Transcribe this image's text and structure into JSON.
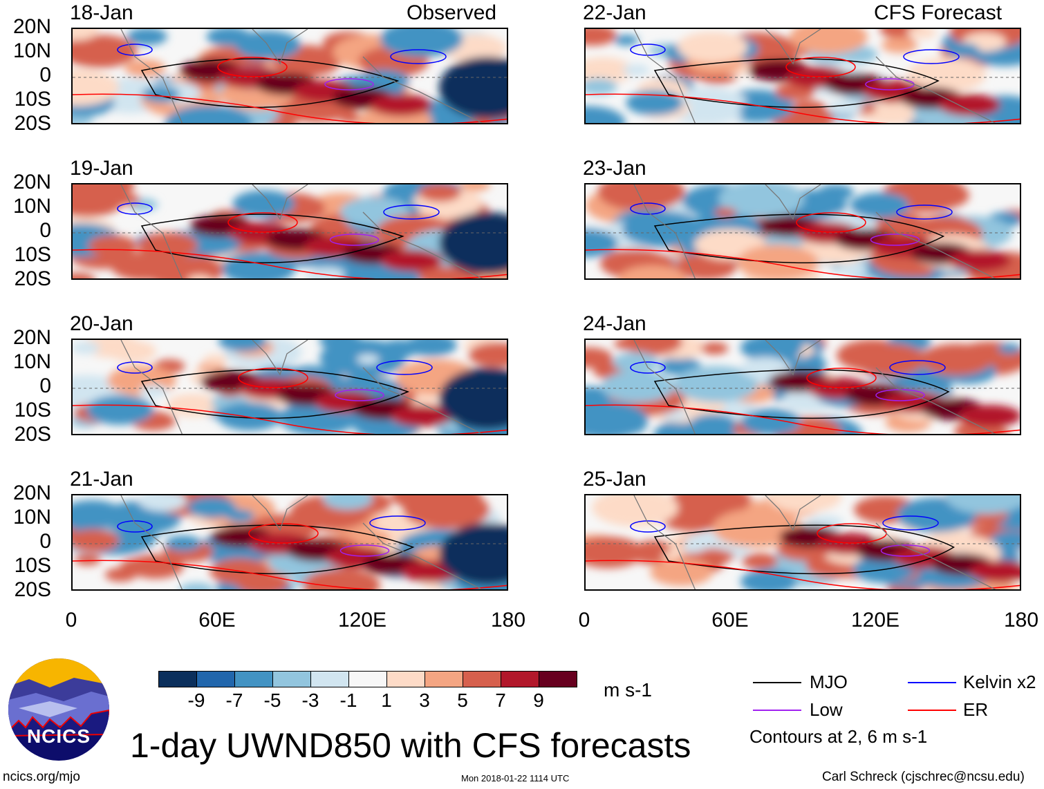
{
  "panels": {
    "left_header": "Observed",
    "right_header": "CFS Forecast",
    "left_dates": [
      "18-Jan",
      "19-Jan",
      "20-Jan",
      "21-Jan"
    ],
    "right_dates": [
      "22-Jan",
      "23-Jan",
      "24-Jan",
      "25-Jan"
    ]
  },
  "lat_ticks": [
    "20N",
    "10N",
    "0",
    "10S",
    "20S"
  ],
  "lon_ticks": [
    "0",
    "60E",
    "120E",
    "180"
  ],
  "colorbar": {
    "colors": [
      "#0b2f5c",
      "#2166ac",
      "#4393c3",
      "#92c5de",
      "#d1e5f0",
      "#f7f7f7",
      "#fddbc7",
      "#f4a582",
      "#d6604d",
      "#b2182b",
      "#67001f"
    ],
    "labels": [
      "-9",
      "-7",
      "-5",
      "-3",
      "-1",
      "1",
      "3",
      "5",
      "7",
      "9"
    ],
    "units": "m s-1"
  },
  "legend": {
    "items": [
      {
        "label": "MJO",
        "color": "#000000"
      },
      {
        "label": "Kelvin x2",
        "color": "#0000ff"
      },
      {
        "label": "Low",
        "color": "#a020f0"
      },
      {
        "label": "ER",
        "color": "#ff0000"
      }
    ],
    "note": "Contours at 2, 6 m s-1"
  },
  "title": "1-day UWND850 with CFS forecasts",
  "logo_text": "NCICS",
  "footer": {
    "url": "ncics.org/mjo",
    "timestamp": "Mon 2018-01-22 1114 UTC",
    "credit": "Carl Schreck (cjschrec@ncsu.edu)"
  }
}
